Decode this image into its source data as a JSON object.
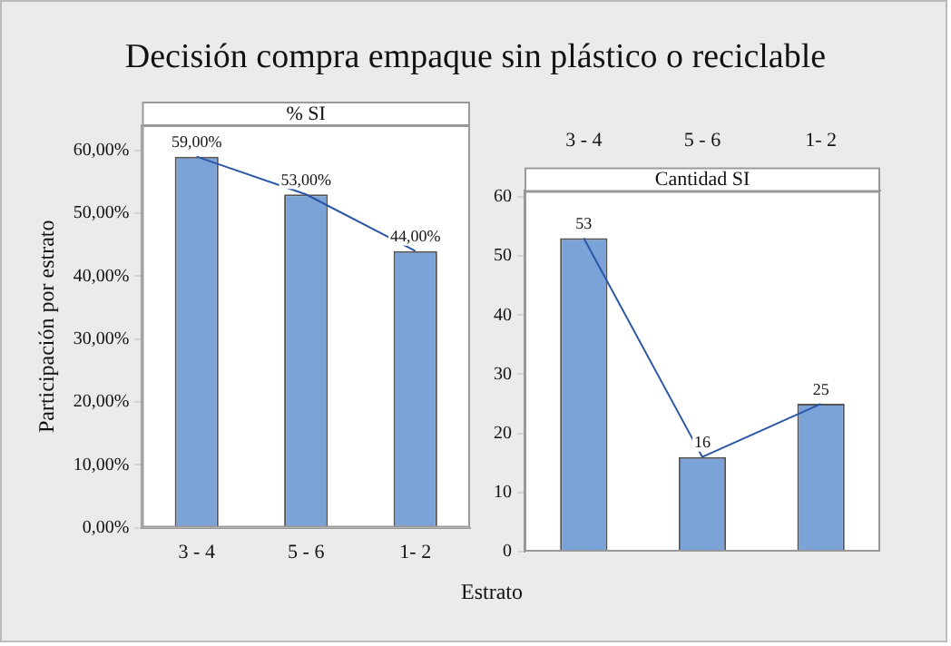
{
  "chart_data": [
    {
      "type": "bar",
      "title": "Decisión compra empaque sin plástico o reciclable",
      "subtitle": "% SI",
      "xlabel": "Estrato",
      "ylabel": "Participación por estrato",
      "categories": [
        "3 - 4",
        "5 - 6",
        "1- 2"
      ],
      "series": [
        {
          "color": "#7ba3d8",
          "values": [
            59,
            53,
            44
          ],
          "value_labels": [
            "59,00%",
            "53,00%",
            "44,00%"
          ]
        },
        {
          "type": "line",
          "color": "#2a56a6",
          "values": [
            59,
            53,
            44
          ],
          "marker": "none"
        }
      ],
      "ylim": [
        0,
        64
      ],
      "yticks": [
        {
          "value": 0,
          "label": "0,00%"
        },
        {
          "value": 10,
          "label": "10,00%"
        },
        {
          "value": 20,
          "label": "20,00%"
        },
        {
          "value": 30,
          "label": "30,00%"
        },
        {
          "value": 40,
          "label": "40,00%"
        },
        {
          "value": 50,
          "label": "50,00%"
        },
        {
          "value": 60,
          "label": "60,00%"
        }
      ],
      "grid": false,
      "legend": false
    },
    {
      "type": "bar",
      "title": "Cantidad SI",
      "categories": [
        "3 - 4",
        "5 - 6",
        "1- 2"
      ],
      "series": [
        {
          "color": "#7ba3d8",
          "values": [
            53,
            16,
            25
          ],
          "value_labels": [
            "53",
            "16",
            "25"
          ]
        },
        {
          "type": "line",
          "color": "#2a56a6",
          "values": [
            53,
            16,
            25
          ],
          "marker": "none"
        }
      ],
      "ylim": [
        0,
        61
      ],
      "yticks": [
        0,
        10,
        20,
        30,
        40,
        50,
        60
      ],
      "grid": false,
      "legend": false
    }
  ]
}
